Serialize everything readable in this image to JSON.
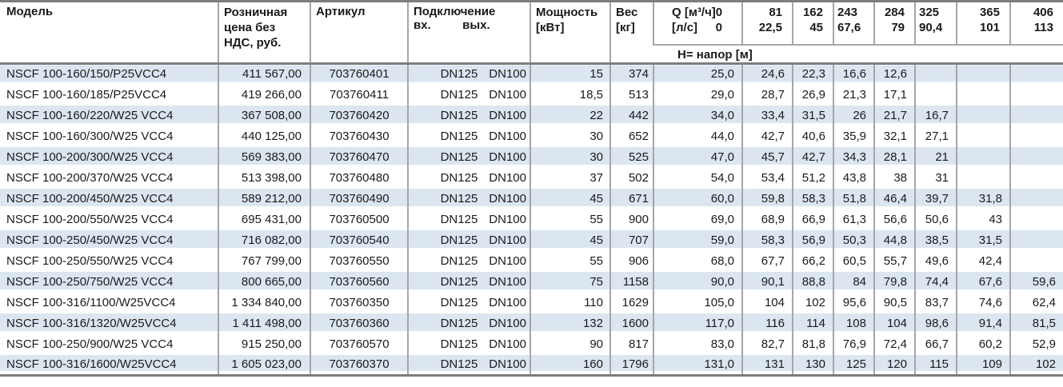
{
  "header": {
    "col_model": "Модель",
    "col_price": "Розничная цена без НДС, руб.",
    "col_article": "Артикул",
    "col_connection": "Подключение",
    "col_connection_in": "вх.",
    "col_connection_out": "вых.",
    "col_power": "Мощность [кВт]",
    "col_weight": "Вес [кг]",
    "q_flow_label": "Q [м³/ч]",
    "q_flow_zero": "0",
    "q_ls_label": "[л/с]",
    "q_ls_zero": "0",
    "q_columns": [
      {
        "m3": "81",
        "ls": "22,5"
      },
      {
        "m3": "162",
        "ls": "45"
      },
      {
        "m3": "243",
        "ls": "67,6"
      },
      {
        "m3": "284",
        "ls": "79"
      },
      {
        "m3": "325",
        "ls": "90,4"
      },
      {
        "m3": "365",
        "ls": "101"
      },
      {
        "m3": "406",
        "ls": "113"
      }
    ],
    "h_row_label": "H= напор [м]"
  },
  "colors": {
    "row_stripe": "#dce6f1",
    "grid_line": "#a6a6a6",
    "heavy_line": "#7d7d7d"
  },
  "rows": [
    {
      "model": "NSCF 100-160/150/P25VCC4",
      "price": "411 567,00",
      "article": "703760401",
      "dn_in": "DN125",
      "dn_out": "DN100",
      "power": "15",
      "weight": "374",
      "h": [
        "25,0",
        "24,6",
        "22,3",
        "16,6",
        "12,6",
        "",
        "",
        ""
      ]
    },
    {
      "model": "NSCF 100-160/185/P25VCC4",
      "price": "419 266,00",
      "article": "703760411",
      "dn_in": "DN125",
      "dn_out": "DN100",
      "power": "18,5",
      "weight": "513",
      "h": [
        "29,0",
        "28,7",
        "26,9",
        "21,3",
        "17,1",
        "",
        "",
        ""
      ]
    },
    {
      "model": "NSCF 100-160/220/W25 VCC4",
      "price": "367 508,00",
      "article": "703760420",
      "dn_in": "DN125",
      "dn_out": "DN100",
      "power": "22",
      "weight": "442",
      "h": [
        "34,0",
        "33,4",
        "31,5",
        "26",
        "21,7",
        "16,7",
        "",
        ""
      ]
    },
    {
      "model": "NSCF 100-160/300/W25 VCC4",
      "price": "440 125,00",
      "article": "703760430",
      "dn_in": "DN125",
      "dn_out": "DN100",
      "power": "30",
      "weight": "652",
      "h": [
        "44,0",
        "42,7",
        "40,6",
        "35,9",
        "32,1",
        "27,1",
        "",
        ""
      ]
    },
    {
      "model": "NSCF 100-200/300/W25 VCC4",
      "price": "569 383,00",
      "article": "703760470",
      "dn_in": "DN125",
      "dn_out": "DN100",
      "power": "30",
      "weight": "525",
      "h": [
        "47,0",
        "45,7",
        "42,7",
        "34,3",
        "28,1",
        "21",
        "",
        ""
      ]
    },
    {
      "model": "NSCF 100-200/370/W25 VCC4",
      "price": "513 398,00",
      "article": "703760480",
      "dn_in": "DN125",
      "dn_out": "DN100",
      "power": "37",
      "weight": "502",
      "h": [
        "54,0",
        "53,4",
        "51,2",
        "43,8",
        "38",
        "31",
        "",
        ""
      ]
    },
    {
      "model": "NSCF 100-200/450/W25 VCC4",
      "price": "589 212,00",
      "article": "703760490",
      "dn_in": "DN125",
      "dn_out": "DN100",
      "power": "45",
      "weight": "671",
      "h": [
        "60,0",
        "59,8",
        "58,3",
        "51,8",
        "46,4",
        "39,7",
        "31,8",
        ""
      ]
    },
    {
      "model": "NSCF 100-200/550/W25 VCC4",
      "price": "695 431,00",
      "article": "703760500",
      "dn_in": "DN125",
      "dn_out": "DN100",
      "power": "55",
      "weight": "900",
      "h": [
        "69,0",
        "68,9",
        "66,9",
        "61,3",
        "56,6",
        "50,6",
        "43",
        ""
      ]
    },
    {
      "model": "NSCF 100-250/450/W25 VCC4",
      "price": "716 082,00",
      "article": "703760540",
      "dn_in": "DN125",
      "dn_out": "DN100",
      "power": "45",
      "weight": "707",
      "h": [
        "59,0",
        "58,3",
        "56,9",
        "50,3",
        "44,8",
        "38,5",
        "31,5",
        ""
      ]
    },
    {
      "model": "NSCF 100-250/550/W25 VCC4",
      "price": "767 799,00",
      "article": "703760550",
      "dn_in": "DN125",
      "dn_out": "DN100",
      "power": "55",
      "weight": "906",
      "h": [
        "68,0",
        "67,7",
        "66,2",
        "60,5",
        "55,7",
        "49,6",
        "42,4",
        ""
      ]
    },
    {
      "model": "NSCF 100-250/750/W25 VCC4",
      "price": "800 665,00",
      "article": "703760560",
      "dn_in": "DN125",
      "dn_out": "DN100",
      "power": "75",
      "weight": "1158",
      "h": [
        "90,0",
        "90,1",
        "88,8",
        "84",
        "79,8",
        "74,4",
        "67,6",
        "59,6"
      ]
    },
    {
      "model": "NSCF 100-316/1100/W25VCC4",
      "price": "1 334 840,00",
      "article": "703760350",
      "dn_in": "DN125",
      "dn_out": "DN100",
      "power": "110",
      "weight": "1629",
      "h": [
        "105,0",
        "104",
        "102",
        "95,6",
        "90,5",
        "83,7",
        "74,6",
        "62,4"
      ]
    },
    {
      "model": "NSCF 100-316/1320/W25VCC4",
      "price": "1 411 498,00",
      "article": "703760360",
      "dn_in": "DN125",
      "dn_out": "DN100",
      "power": "132",
      "weight": "1600",
      "h": [
        "117,0",
        "116",
        "114",
        "108",
        "104",
        "98,6",
        "91,4",
        "81,5"
      ]
    },
    {
      "model": "NSCF 100-250/900/W25 VCC4",
      "price": "915 250,00",
      "article": "703760570",
      "dn_in": "DN125",
      "dn_out": "DN100",
      "power": "90",
      "weight": "817",
      "h": [
        "83,0",
        "82,7",
        "81,8",
        "76,9",
        "72,4",
        "66,7",
        "60,2",
        "52,9"
      ]
    },
    {
      "model": "NSCF 100-316/1600/W25VCC4",
      "price": "1 605 023,00",
      "article": "703760370",
      "dn_in": "DN125",
      "dn_out": "DN100",
      "power": "160",
      "weight": "1796",
      "h": [
        "131,0",
        "131",
        "130",
        "125",
        "120",
        "115",
        "109",
        "102"
      ]
    }
  ]
}
